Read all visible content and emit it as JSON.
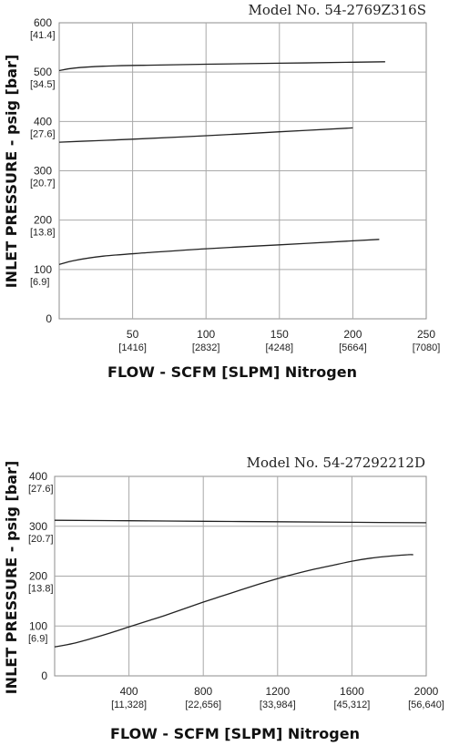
{
  "chart_data": [
    {
      "type": "line",
      "title": "Model No. 54-2769Z316S",
      "xlabel": "FLOW - SCFM [SLPM] Nitrogen",
      "ylabel": "INLET PRESSURE - psig [bar]",
      "xlim": [
        0,
        250
      ],
      "ylim": [
        0,
        600
      ],
      "grid": true,
      "x_ticks": [
        {
          "value": 50,
          "label": "50",
          "sub": "[1416]"
        },
        {
          "value": 100,
          "label": "100",
          "sub": "[2832]"
        },
        {
          "value": 150,
          "label": "150",
          "sub": "[4248]"
        },
        {
          "value": 200,
          "label": "200",
          "sub": "[5664]"
        },
        {
          "value": 250,
          "label": "250",
          "sub": "[7080]"
        }
      ],
      "y_ticks": [
        {
          "value": 0,
          "label": "0",
          "sub": ""
        },
        {
          "value": 100,
          "label": "100",
          "sub": "[6.9]"
        },
        {
          "value": 200,
          "label": "200",
          "sub": "[13.8]"
        },
        {
          "value": 300,
          "label": "300",
          "sub": "[20.7]"
        },
        {
          "value": 400,
          "label": "400",
          "sub": "[27.6]"
        },
        {
          "value": 500,
          "label": "500",
          "sub": "[34.5]"
        },
        {
          "value": 600,
          "label": "600",
          "sub": "[41.4]"
        }
      ],
      "series": [
        {
          "x": [
            0,
            10,
            30,
            60,
            100,
            150,
            200,
            222
          ],
          "y": [
            503,
            508,
            512,
            514,
            516,
            518,
            520,
            521
          ]
        },
        {
          "x": [
            0,
            25,
            50,
            100,
            150,
            200
          ],
          "y": [
            358,
            361,
            364,
            371,
            379,
            387
          ]
        },
        {
          "x": [
            0,
            10,
            30,
            60,
            100,
            150,
            200,
            218
          ],
          "y": [
            110,
            118,
            127,
            134,
            142,
            150,
            158,
            161
          ]
        }
      ]
    },
    {
      "type": "line",
      "title": "Model No. 54-27292212D",
      "xlabel": "FLOW - SCFM [SLPM] Nitrogen",
      "ylabel": "INLET PRESSURE - psig [bar]",
      "xlim": [
        0,
        2000
      ],
      "ylim": [
        0,
        400
      ],
      "grid": true,
      "x_ticks": [
        {
          "value": 400,
          "label": "400",
          "sub": "[11,328]"
        },
        {
          "value": 800,
          "label": "800",
          "sub": "[22,656]"
        },
        {
          "value": 1200,
          "label": "1200",
          "sub": "[33,984]"
        },
        {
          "value": 1600,
          "label": "1600",
          "sub": "[45,312]"
        },
        {
          "value": 2000,
          "label": "2000",
          "sub": "[56,640]"
        }
      ],
      "y_ticks": [
        {
          "value": 0,
          "label": "0",
          "sub": ""
        },
        {
          "value": 100,
          "label": "100",
          "sub": "[6.9]"
        },
        {
          "value": 200,
          "label": "200",
          "sub": "[13.8]"
        },
        {
          "value": 300,
          "label": "300",
          "sub": "[20.7]"
        },
        {
          "value": 400,
          "label": "400",
          "sub": "[27.6]"
        }
      ],
      "series": [
        {
          "x": [
            0,
            400,
            800,
            1200,
            1600,
            2000
          ],
          "y": [
            312,
            311,
            310,
            309,
            308,
            307
          ]
        },
        {
          "x": [
            0,
            100,
            200,
            300,
            400,
            500,
            600,
            700,
            800,
            900,
            1000,
            1100,
            1200,
            1300,
            1400,
            1500,
            1600,
            1700,
            1800,
            1900,
            1930
          ],
          "y": [
            58,
            65,
            75,
            86,
            98,
            110,
            122,
            135,
            148,
            160,
            172,
            184,
            195,
            205,
            214,
            222,
            230,
            236,
            240,
            243,
            243
          ]
        }
      ]
    }
  ]
}
